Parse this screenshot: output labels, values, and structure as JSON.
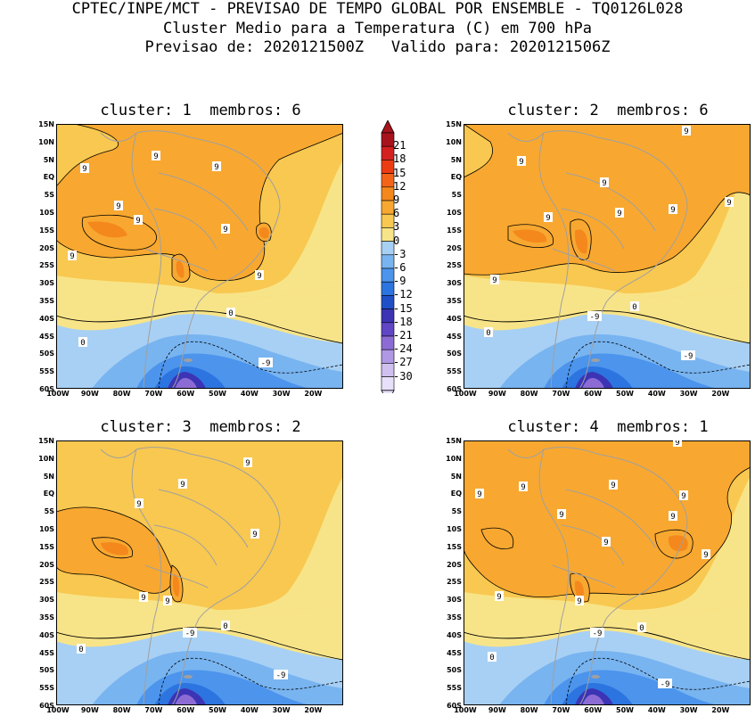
{
  "header": {
    "line1": "CPTEC/INPE/MCT - PREVISAO DE TEMPO GLOBAL POR ENSEMBLE - TQ0126L028",
    "line2": "Cluster Medio para a Temperatura (C) em 700 hPa",
    "line3": "Previsao de: 2020121500Z   Valido para: 2020121506Z"
  },
  "panels": [
    {
      "title": "cluster: 1  membros: 6"
    },
    {
      "title": "cluster: 2  membros: 6"
    },
    {
      "title": "cluster: 3  membros: 2"
    },
    {
      "title": "cluster: 4  membros: 1"
    }
  ],
  "axes": {
    "lat_labels": [
      "15N",
      "10N",
      "5N",
      "EQ",
      "5S",
      "10S",
      "15S",
      "20S",
      "25S",
      "30S",
      "35S",
      "40S",
      "45S",
      "50S",
      "55S",
      "60S"
    ],
    "lon_labels": [
      "100W",
      "90W",
      "80W",
      "70W",
      "60W",
      "50W",
      "40W",
      "30W",
      "20W"
    ]
  },
  "contour_labels": {
    "nine": "9",
    "zero": "0",
    "minus_nine": "-9"
  },
  "colorbar": {
    "levels": [
      "21",
      "18",
      "15",
      "12",
      "9",
      "6",
      "3",
      "0",
      "-3",
      "-6",
      "-9",
      "-12",
      "-15",
      "-18",
      "-21",
      "-24",
      "-27",
      "-30"
    ],
    "colors": [
      "#a8141c",
      "#d42020",
      "#ec3c14",
      "#f46418",
      "#f4881c",
      "#f8a830",
      "#f8c850",
      "#f8e488",
      "#a8d0f4",
      "#78b4f0",
      "#4c94ec",
      "#2c74e0",
      "#2050c8",
      "#3c34b4",
      "#6046c4",
      "#8c6cd4",
      "#b098e4",
      "#d0c0f0",
      "#e8e0fa"
    ],
    "arrow_top": "#a8141c",
    "arrow_bottom": "#e8e0fa"
  },
  "colors": {
    "land_outline": "#a0a0a0",
    "contour": "#000000"
  }
}
